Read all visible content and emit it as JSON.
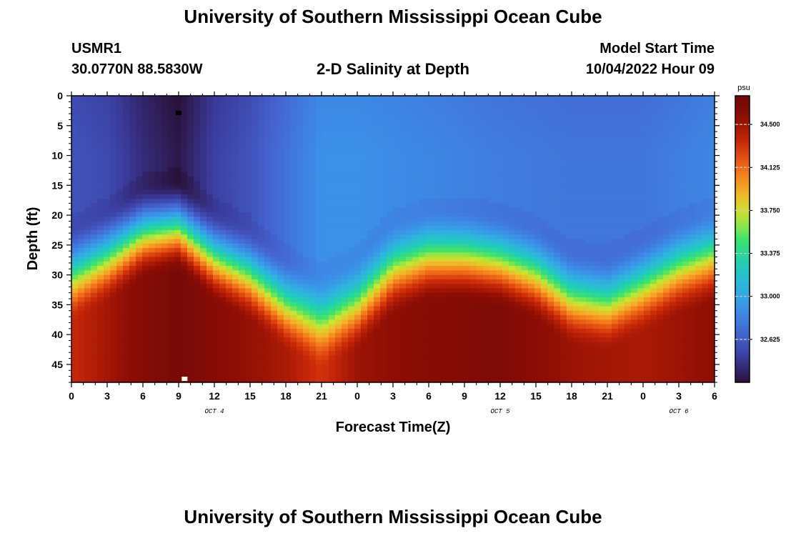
{
  "header": {
    "title": "University of Southern Mississippi Ocean Cube",
    "station": "USMR1",
    "coords": "30.0770N  88.5830W",
    "subtitle": "2-D Salinity at Depth",
    "model_label": "Model Start Time",
    "model_time": "10/04/2022 Hour 09"
  },
  "footer": {
    "title": "University of Southern Mississippi Ocean Cube"
  },
  "colors": {
    "colormap": [
      "#2a1038",
      "#3a3a9a",
      "#4563d0",
      "#3c8ee8",
      "#2fb4e0",
      "#1ecfb6",
      "#3ee36a",
      "#c8e830",
      "#f6b026",
      "#f06a18",
      "#cc2a08",
      "#900e04",
      "#6e0808"
    ]
  },
  "chart_data": {
    "type": "heatmap",
    "title": "2-D Salinity at Depth",
    "xlabel": "Forecast Time(Z)",
    "ylabel": "Depth (ft)",
    "x_tick_labels": [
      "0",
      "3",
      "6",
      "9",
      "12",
      "15",
      "18",
      "21",
      "0",
      "3",
      "6",
      "9",
      "12",
      "15",
      "18",
      "21",
      "0",
      "3",
      "6"
    ],
    "x_range_hours": [
      0,
      54
    ],
    "y_ticks": [
      0,
      5,
      10,
      15,
      20,
      25,
      30,
      35,
      40,
      45
    ],
    "y_range": [
      0,
      48
    ],
    "y_inverted": true,
    "date_labels": [
      {
        "label": "OCT 4",
        "hour": 12
      },
      {
        "label": "OCT 5",
        "hour": 36
      },
      {
        "label": "OCT 6",
        "hour": 51
      }
    ],
    "colorbar": {
      "unit": "psu",
      "range": [
        32.25,
        34.75
      ],
      "ticks": [
        "34.500",
        "34.125",
        "33.750",
        "33.375",
        "33.000",
        "32.625"
      ],
      "tick_values": [
        34.5,
        34.125,
        33.75,
        33.375,
        33.0,
        32.625
      ]
    },
    "halocline_depth_ft": [
      {
        "hour": 0,
        "depth": 30
      },
      {
        "hour": 3,
        "depth": 27
      },
      {
        "hour": 6,
        "depth": 23
      },
      {
        "hour": 9,
        "depth": 22
      },
      {
        "hour": 12,
        "depth": 27
      },
      {
        "hour": 15,
        "depth": 30
      },
      {
        "hour": 18,
        "depth": 35
      },
      {
        "hour": 21,
        "depth": 38
      },
      {
        "hour": 24,
        "depth": 35
      },
      {
        "hour": 27,
        "depth": 29
      },
      {
        "hour": 30,
        "depth": 27
      },
      {
        "hour": 33,
        "depth": 27
      },
      {
        "hour": 36,
        "depth": 28
      },
      {
        "hour": 39,
        "depth": 30
      },
      {
        "hour": 42,
        "depth": 34
      },
      {
        "hour": 45,
        "depth": 35
      },
      {
        "hour": 48,
        "depth": 32
      },
      {
        "hour": 51,
        "depth": 29
      },
      {
        "hour": 54,
        "depth": 27
      }
    ],
    "surface_salinity_psu": [
      {
        "hour": 0,
        "value": 32.55
      },
      {
        "hour": 3,
        "value": 32.5
      },
      {
        "hour": 6,
        "value": 32.35
      },
      {
        "hour": 9,
        "value": 32.25
      },
      {
        "hour": 12,
        "value": 32.45
      },
      {
        "hour": 15,
        "value": 32.55
      },
      {
        "hour": 18,
        "value": 32.7
      },
      {
        "hour": 21,
        "value": 32.85
      },
      {
        "hour": 24,
        "value": 32.85
      },
      {
        "hour": 30,
        "value": 32.8
      },
      {
        "hour": 36,
        "value": 32.75
      },
      {
        "hour": 42,
        "value": 32.72
      },
      {
        "hour": 48,
        "value": 32.72
      },
      {
        "hour": 54,
        "value": 32.8
      }
    ],
    "bottom_salinity_psu": [
      {
        "hour": 0,
        "value": 34.35
      },
      {
        "hour": 6,
        "value": 34.6
      },
      {
        "hour": 9,
        "value": 34.7
      },
      {
        "hour": 12,
        "value": 34.6
      },
      {
        "hour": 18,
        "value": 34.45
      },
      {
        "hour": 21,
        "value": 34.3
      },
      {
        "hour": 24,
        "value": 34.5
      },
      {
        "hour": 30,
        "value": 34.6
      },
      {
        "hour": 36,
        "value": 34.65
      },
      {
        "hour": 42,
        "value": 34.5
      },
      {
        "hour": 48,
        "value": 34.45
      },
      {
        "hour": 54,
        "value": 34.55
      }
    ],
    "markers": [
      {
        "name": "black-marker",
        "hour": 9,
        "depth": 3,
        "color": "#000000"
      },
      {
        "name": "white-marker",
        "hour": 9.5,
        "depth": 48,
        "color": "#ffffff"
      }
    ]
  }
}
